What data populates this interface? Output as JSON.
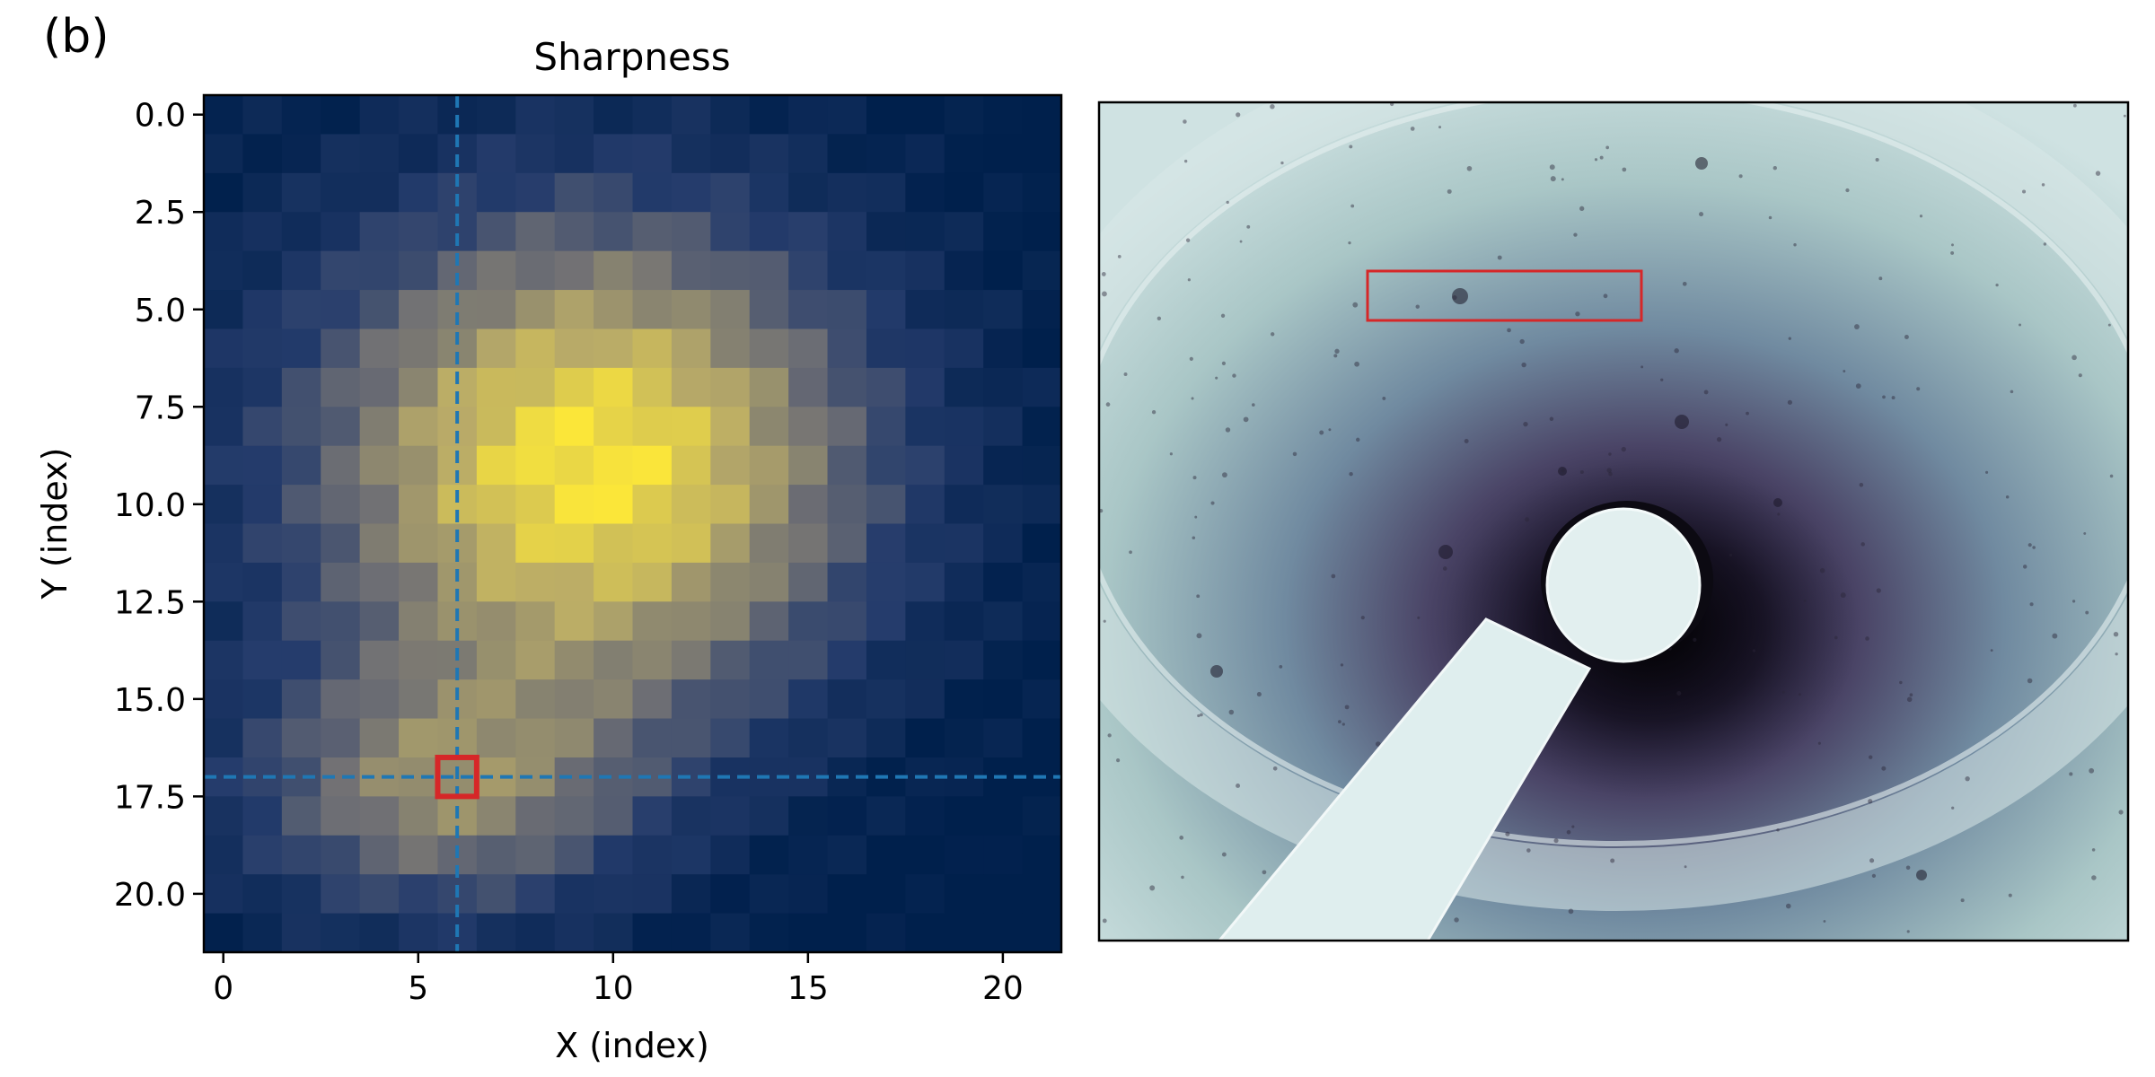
{
  "panel_label": "(b)",
  "chart_data": [
    {
      "type": "heatmap",
      "title": "Sharpness",
      "xlabel": "X (index)",
      "ylabel": "Y (index)",
      "xlim": [
        -0.5,
        21.5
      ],
      "ylim": [
        21.5,
        -0.5
      ],
      "x_ticks": [
        0,
        5,
        10,
        15,
        20
      ],
      "x_tick_labels": [
        "0",
        "5",
        "10",
        "15",
        "20"
      ],
      "y_ticks": [
        0,
        2.5,
        5,
        7.5,
        10,
        12.5,
        15,
        17.5,
        20
      ],
      "y_tick_labels": [
        "0.0",
        "2.5",
        "5.0",
        "7.5",
        "10.0",
        "12.5",
        "15.0",
        "17.5",
        "20.0"
      ],
      "grid_size": [
        22,
        22
      ],
      "colormap": "cividis",
      "peak": {
        "x": 9.5,
        "y": 9.0
      },
      "secondary_peak": {
        "x": 5.5,
        "y": 17.5
      },
      "crosshair": {
        "x": 6,
        "y": 17,
        "color": "#1f77b4",
        "style": "dashed"
      },
      "selected_cell": {
        "x": 6,
        "y": 17,
        "color": "#d62728"
      }
    },
    {
      "type": "image",
      "description_color_low": "#0a0710",
      "description_color_mid": "#4a4466",
      "description_color_high": "#dceaea",
      "highlight_box_color": "#d62728"
    }
  ]
}
